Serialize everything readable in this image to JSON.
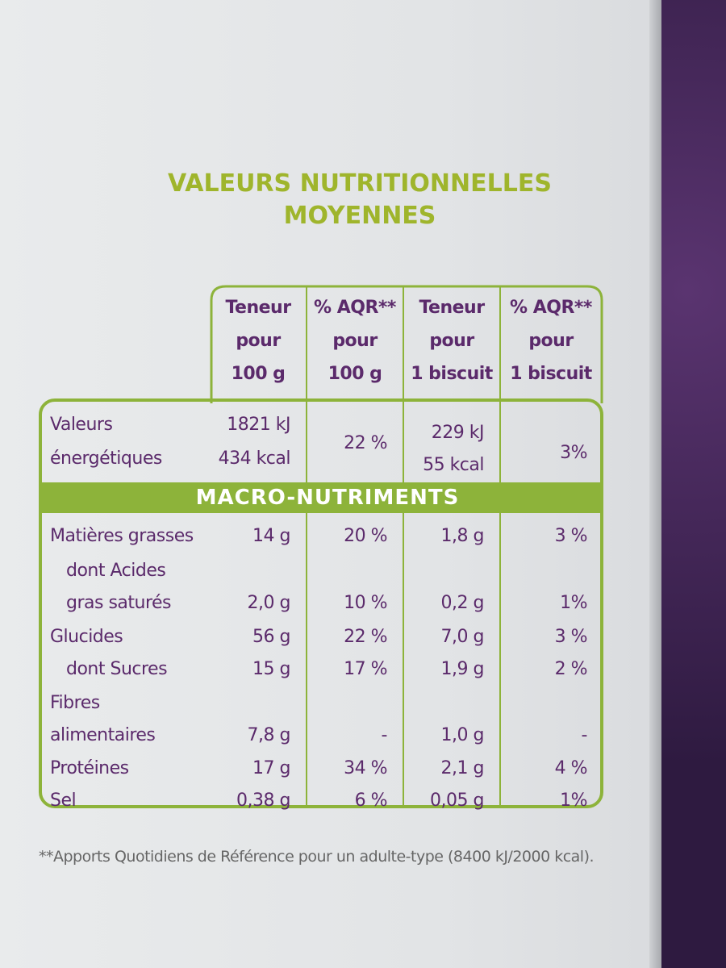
{
  "header": {
    "title_lines": [
      "VALEURS NUTRITIONNELLES",
      "MOYENNES"
    ]
  },
  "table": {
    "columns": [
      [
        "Teneur",
        "pour",
        "100 g"
      ],
      [
        "% AQR**",
        "pour",
        "100 g"
      ],
      [
        "Teneur",
        "pour",
        "1 biscuit"
      ],
      [
        "% AQR**",
        "pour",
        "1 biscuit"
      ]
    ],
    "energy": {
      "label": [
        "Valeurs",
        "énergétiques"
      ],
      "cells": [
        [
          "1821 kJ",
          "434 kcal"
        ],
        [
          "22 %"
        ],
        [
          "229 kJ",
          "55 kcal"
        ],
        [
          "3%"
        ]
      ]
    },
    "section": "MACRO-NUTRIMENTS",
    "rows": [
      {
        "label": [
          "Matières grasses"
        ],
        "cells": [
          "14 g",
          "20 %",
          "1,8 g",
          "3 %"
        ]
      },
      {
        "label": [
          "dont Acides",
          "gras saturés"
        ],
        "cells": [
          "2,0 g",
          "10 %",
          "0,2 g",
          "1%"
        ]
      },
      {
        "label": [
          "Glucides"
        ],
        "cells": [
          "56 g",
          "22 %",
          "7,0 g",
          "3 %"
        ]
      },
      {
        "label": [
          "dont Sucres"
        ],
        "cells": [
          "15 g",
          "17 %",
          "1,9 g",
          "2 %"
        ]
      },
      {
        "label": [
          "Fibres",
          "alimentaires"
        ],
        "cells": [
          "7,8 g",
          "-",
          "1,0 g",
          "-"
        ]
      },
      {
        "label": [
          "Protéines"
        ],
        "cells": [
          "17 g",
          "34 %",
          "2,1 g",
          "4 %"
        ]
      },
      {
        "label": [
          "Sel"
        ],
        "cells": [
          "0,38 g",
          "6 %",
          "0,05 g",
          "1%"
        ]
      }
    ]
  },
  "footnote": "**Apports Quotidiens de Référence pour un adulte-type (8400 kJ/2000 kcal)."
}
